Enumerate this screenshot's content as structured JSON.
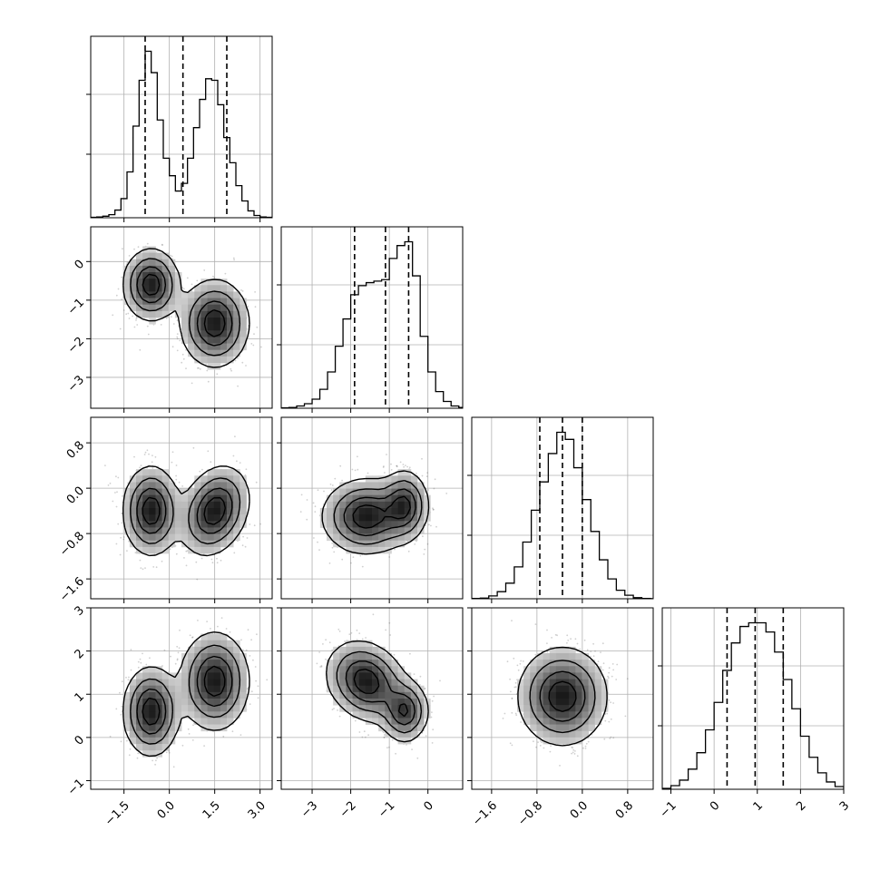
{
  "chart_data": {
    "type": "corner",
    "parameters": 4,
    "axes": [
      {
        "range": [
          -2.6,
          3.4
        ],
        "ticks": [
          -1.5,
          0.0,
          1.5,
          3.0
        ],
        "tick_labels": [
          "−1.5",
          "0.0",
          "1.5",
          "3.0"
        ]
      },
      {
        "range": [
          -3.8,
          0.9
        ],
        "ticks": [
          -3,
          -2,
          -1,
          0
        ],
        "tick_labels": [
          "−3",
          "−2",
          "−1",
          "0"
        ]
      },
      {
        "range": [
          -1.95,
          1.25
        ],
        "ticks": [
          -1.6,
          -0.8,
          0.0,
          0.8
        ],
        "tick_labels": [
          "−1.6",
          "−0.8",
          "0.0",
          "0.8"
        ]
      },
      {
        "range": [
          -1.2,
          3.0
        ],
        "ticks": [
          -1,
          0,
          1,
          2,
          3
        ],
        "tick_labels": [
          "−1",
          "0",
          "1",
          "2",
          "3"
        ]
      }
    ],
    "quantiles": [
      [
        -0.8,
        0.45,
        1.9
      ],
      [
        -1.9,
        -1.1,
        -0.5
      ],
      [
        -0.75,
        -0.35,
        0.0
      ],
      [
        0.3,
        0.95,
        1.6
      ]
    ],
    "histograms": [
      {
        "bins": [
          -2.6,
          -2.4,
          -2.2,
          -2.0,
          -1.8,
          -1.6,
          -1.4,
          -1.2,
          -1.0,
          -0.8,
          -0.6,
          -0.4,
          -0.2,
          0.0,
          0.2,
          0.4,
          0.6,
          0.8,
          1.0,
          1.2,
          1.4,
          1.6,
          1.8,
          2.0,
          2.2,
          2.4,
          2.6,
          2.8,
          3.0,
          3.2,
          3.4
        ],
        "counts": [
          0.5,
          1,
          2,
          4,
          10,
          25,
          60,
          120,
          180,
          218,
          190,
          128,
          78,
          55,
          35,
          45,
          78,
          118,
          155,
          182,
          180,
          148,
          105,
          72,
          42,
          22,
          9,
          3,
          1,
          0.5
        ]
      },
      {
        "bins": [
          -3.8,
          -3.6,
          -3.4,
          -3.2,
          -3.0,
          -2.8,
          -2.6,
          -2.4,
          -2.2,
          -2.0,
          -1.8,
          -1.6,
          -1.4,
          -1.2,
          -1.0,
          -0.8,
          -0.6,
          -0.4,
          -0.2,
          0.0,
          0.2,
          0.4,
          0.6,
          0.8,
          1.0
        ],
        "counts": [
          0.5,
          1,
          3,
          6,
          12,
          25,
          48,
          82,
          118,
          150,
          162,
          166,
          168,
          170,
          198,
          215,
          220,
          175,
          95,
          48,
          22,
          9,
          3,
          1
        ]
      },
      {
        "bins": [
          -1.95,
          -1.8,
          -1.65,
          -1.5,
          -1.35,
          -1.2,
          -1.05,
          -0.9,
          -0.75,
          -0.6,
          -0.45,
          -0.3,
          -0.15,
          0.0,
          0.15,
          0.3,
          0.45,
          0.6,
          0.75,
          0.9,
          1.05,
          1.2
        ],
        "counts": [
          0.5,
          1,
          4,
          10,
          22,
          45,
          80,
          125,
          165,
          205,
          235,
          225,
          185,
          140,
          95,
          55,
          28,
          12,
          5,
          1.5,
          0.5
        ]
      },
      {
        "bins": [
          -1.2,
          -1.0,
          -0.8,
          -0.6,
          -0.4,
          -0.2,
          0.0,
          0.2,
          0.4,
          0.6,
          0.8,
          1.0,
          1.2,
          1.4,
          1.6,
          1.8,
          2.0,
          2.2,
          2.4,
          2.6,
          2.8,
          3.0
        ],
        "counts": [
          1,
          4,
          10,
          22,
          40,
          65,
          95,
          130,
          160,
          178,
          182,
          182,
          172,
          150,
          120,
          88,
          58,
          35,
          18,
          8,
          3
        ]
      }
    ],
    "pairs": [
      {
        "x": 0,
        "y": 1,
        "modes": [
          {
            "x": -0.6,
            "y": -0.6,
            "sx": 0.45,
            "sy": 0.45,
            "rho": 0.0,
            "w": 0.5
          },
          {
            "x": 1.5,
            "y": -1.6,
            "sx": 0.55,
            "sy": 0.55,
            "rho": 0.0,
            "w": 0.5
          }
        ]
      },
      {
        "x": 0,
        "y": 2,
        "modes": [
          {
            "x": -0.6,
            "y": -0.4,
            "sx": 0.45,
            "sy": 0.38,
            "rho": 0.0,
            "w": 0.5
          },
          {
            "x": 1.5,
            "y": -0.4,
            "sx": 0.55,
            "sy": 0.38,
            "rho": 0.25,
            "w": 0.5
          }
        ]
      },
      {
        "x": 1,
        "y": 2,
        "modes": [
          {
            "x": -0.6,
            "y": -0.3,
            "sx": 0.3,
            "sy": 0.3,
            "rho": 0.0,
            "w": 0.45
          },
          {
            "x": -1.6,
            "y": -0.5,
            "sx": 0.55,
            "sy": 0.32,
            "rho": 0.0,
            "w": 0.55
          }
        ]
      },
      {
        "x": 0,
        "y": 3,
        "modes": [
          {
            "x": -0.6,
            "y": 0.6,
            "sx": 0.45,
            "sy": 0.5,
            "rho": 0.0,
            "w": 0.5
          },
          {
            "x": 1.5,
            "y": 1.3,
            "sx": 0.55,
            "sy": 0.55,
            "rho": 0.0,
            "w": 0.5
          }
        ]
      },
      {
        "x": 1,
        "y": 3,
        "modes": [
          {
            "x": -0.6,
            "y": 0.6,
            "sx": 0.3,
            "sy": 0.35,
            "rho": 0.0,
            "w": 0.45
          },
          {
            "x": -1.6,
            "y": 1.3,
            "sx": 0.5,
            "sy": 0.45,
            "rho": -0.2,
            "w": 0.55
          }
        ]
      },
      {
        "x": 2,
        "y": 3,
        "modes": [
          {
            "x": -0.35,
            "y": 0.95,
            "sx": 0.38,
            "sy": 0.55,
            "rho": 0.0,
            "w": 1.0
          }
        ]
      }
    ],
    "grid": true,
    "xlabel": "",
    "ylabel": "",
    "title": ""
  }
}
